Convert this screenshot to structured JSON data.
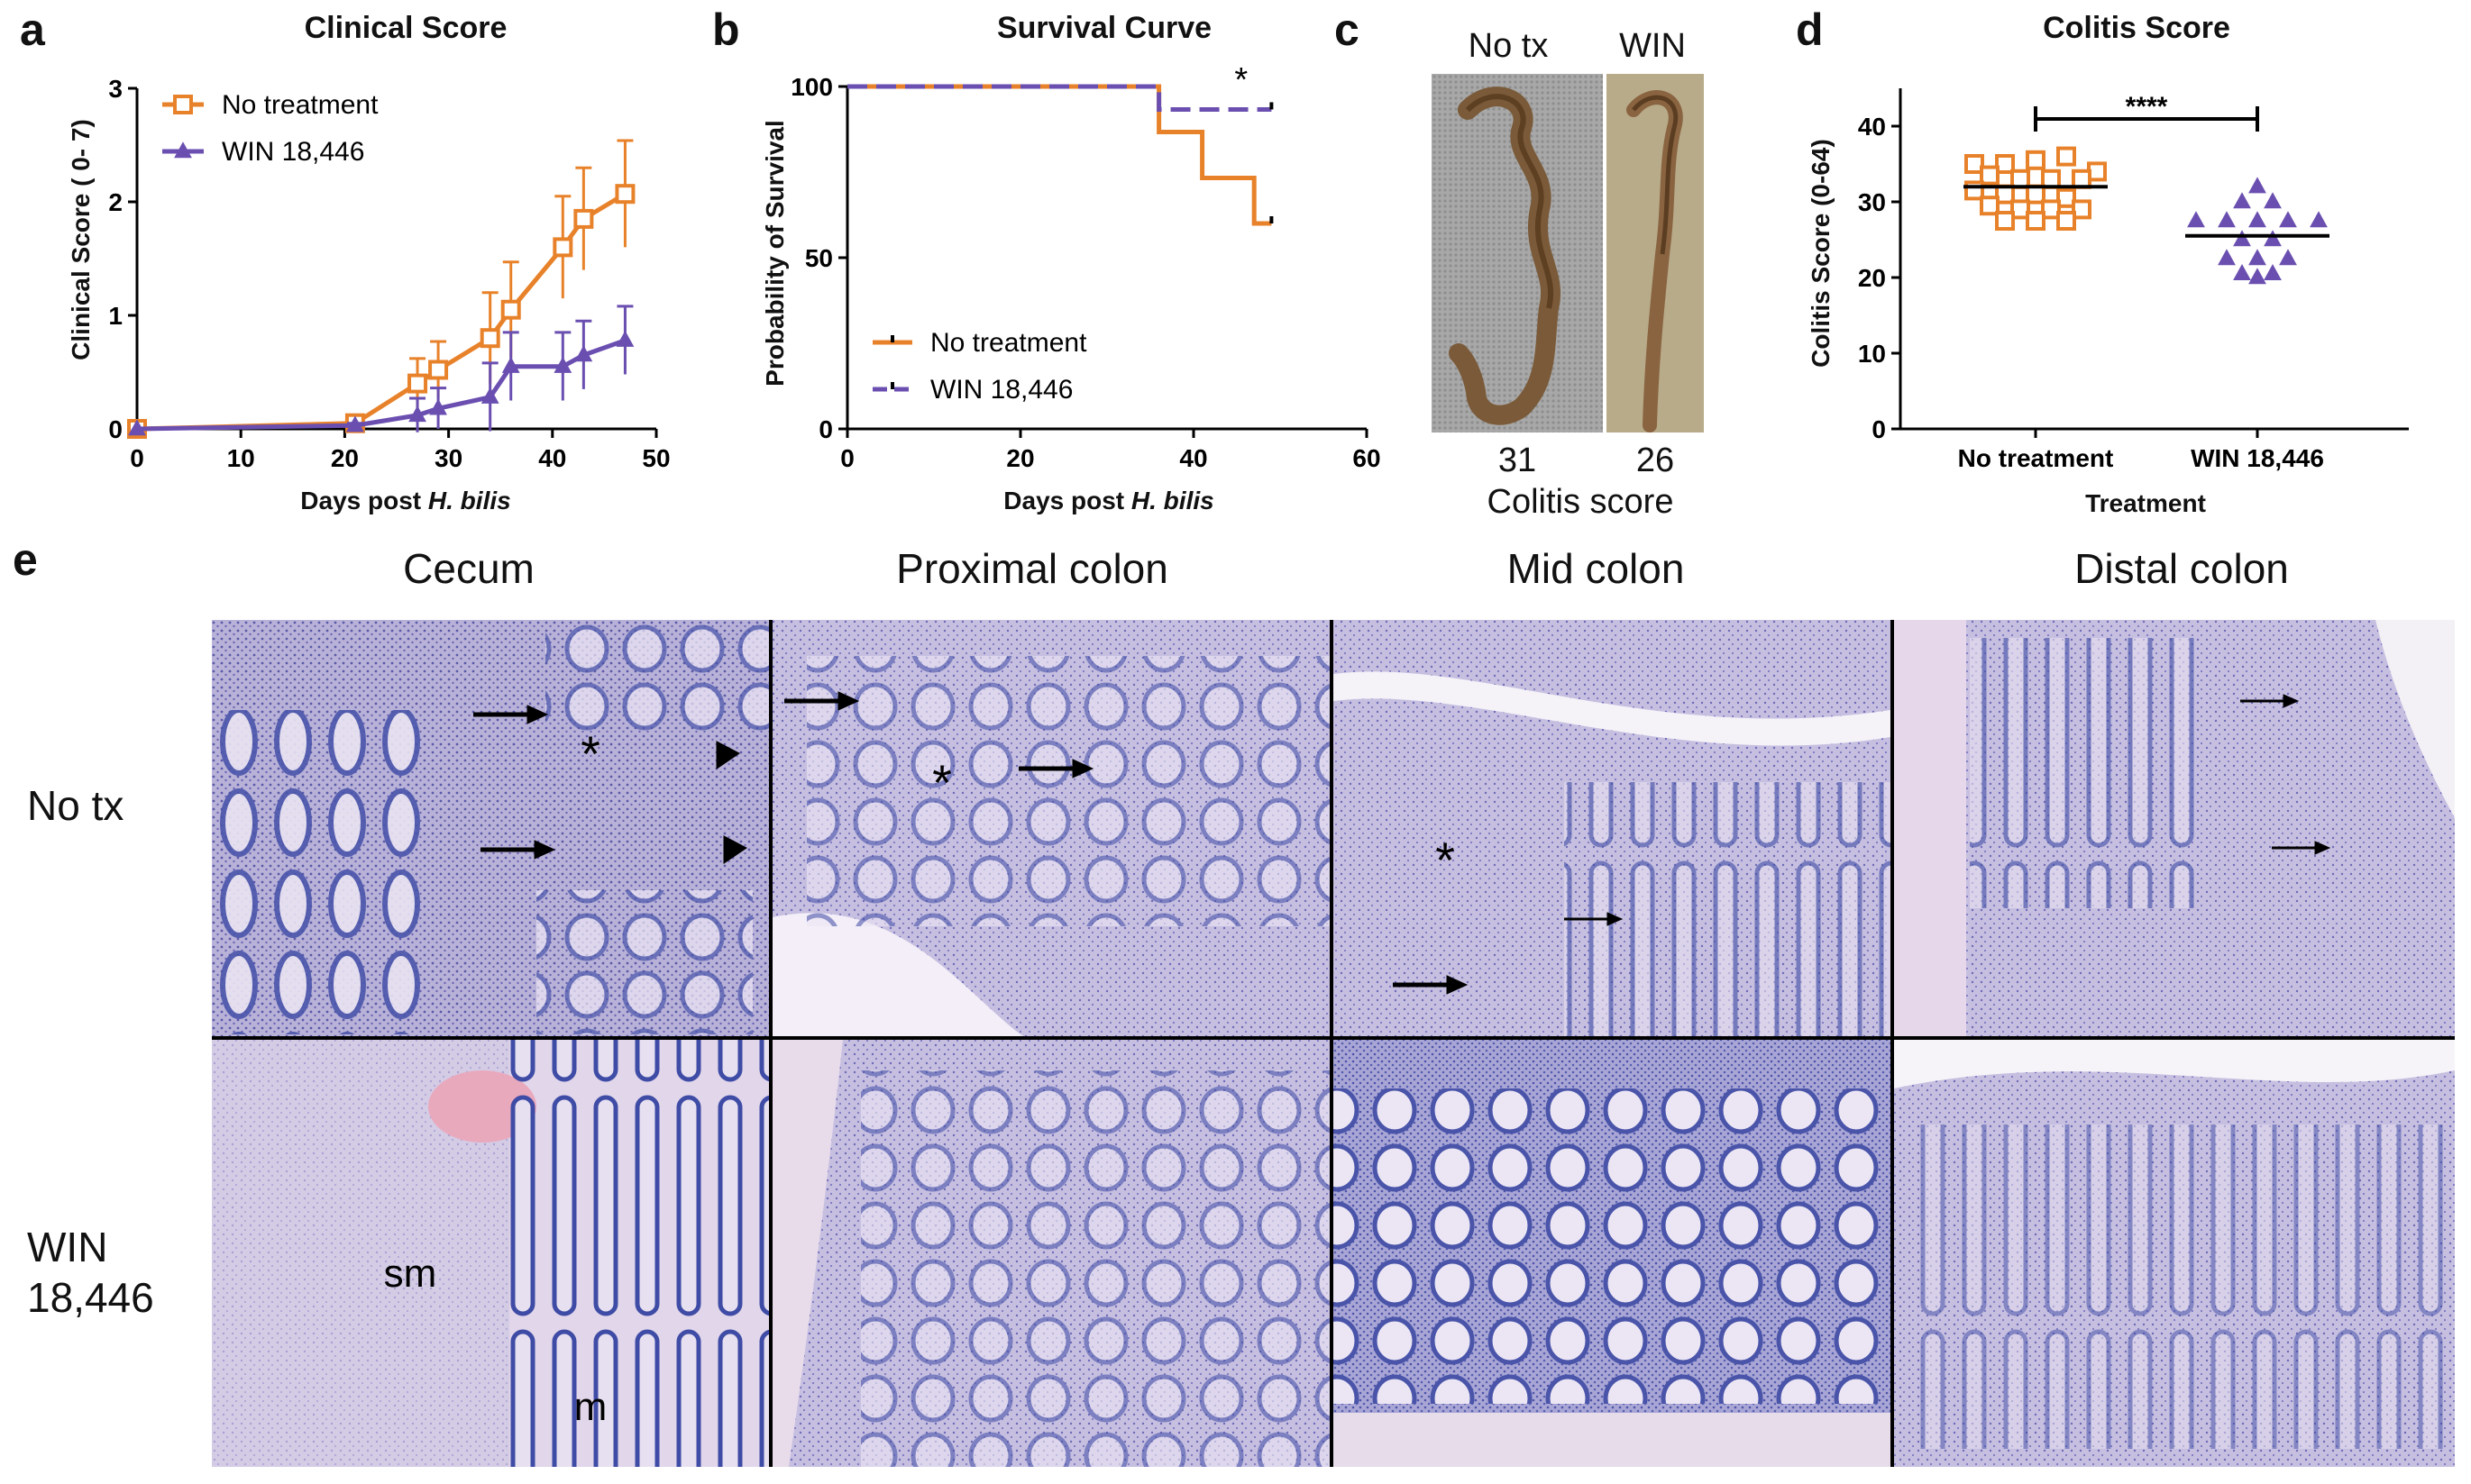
{
  "panels": {
    "a": "a",
    "b": "b",
    "c": "c",
    "d": "d",
    "e": "e"
  },
  "colors": {
    "orange": "#e8822a",
    "purple": "#6a4fb0",
    "axis": "#000000"
  },
  "chart_data": [
    {
      "id": "a",
      "type": "line",
      "title": "Clinical Score",
      "xlabel_prefix": "Days post ",
      "xlabel_italic": "H. bilis",
      "ylabel": "Clinical Score ( 0- 7)",
      "xlim": [
        0,
        50
      ],
      "ylim": [
        0,
        3
      ],
      "xticks": [
        0,
        10,
        20,
        30,
        40,
        50
      ],
      "yticks": [
        0,
        1,
        2,
        3
      ],
      "legend_position": "top-left",
      "series": [
        {
          "name": "No treatment",
          "color": "#e8822a",
          "marker": "square-open",
          "x": [
            0,
            21,
            27,
            29,
            34,
            36,
            41,
            43,
            47
          ],
          "y": [
            0,
            0.05,
            0.4,
            0.52,
            0.8,
            1.05,
            1.6,
            1.85,
            2.07
          ],
          "err": [
            0,
            0.03,
            0.22,
            0.25,
            0.4,
            0.42,
            0.45,
            0.45,
            0.47
          ]
        },
        {
          "name": "WIN 18,446",
          "color": "#6a4fb0",
          "marker": "triangle-filled",
          "x": [
            0,
            21,
            27,
            29,
            34,
            36,
            41,
            43,
            47
          ],
          "y": [
            0,
            0.03,
            0.12,
            0.18,
            0.28,
            0.55,
            0.55,
            0.65,
            0.78
          ],
          "err": [
            0,
            0.02,
            0.15,
            0.18,
            0.3,
            0.3,
            0.3,
            0.3,
            0.3
          ]
        }
      ]
    },
    {
      "id": "b",
      "type": "line",
      "title": "Survival Curve",
      "xlabel_prefix": "Days post ",
      "xlabel_italic": "H. bilis",
      "ylabel": "Probability of Survival",
      "xlim": [
        0,
        60
      ],
      "ylim": [
        0,
        100
      ],
      "xticks": [
        0,
        20,
        40,
        60
      ],
      "yticks": [
        0,
        50,
        100
      ],
      "legend_position": "bottom-left",
      "significance": "*",
      "series": [
        {
          "name": "No treatment",
          "color": "#e8822a",
          "style": "solid",
          "steps": [
            [
              0,
              100
            ],
            [
              36,
              100
            ],
            [
              36,
              86.7
            ],
            [
              41,
              86.7
            ],
            [
              41,
              73.3
            ],
            [
              47,
              73.3
            ],
            [
              47,
              60
            ],
            [
              49,
              60
            ]
          ]
        },
        {
          "name": "WIN 18,446",
          "color": "#6a4fb0",
          "style": "dashed",
          "steps": [
            [
              0,
              100
            ],
            [
              36,
              100
            ],
            [
              36,
              93.3
            ],
            [
              49,
              93.3
            ]
          ]
        }
      ]
    },
    {
      "id": "d",
      "type": "scatter",
      "title": "Colitis Score",
      "xlabel": "Treatment",
      "ylabel": "Colitis Score (0-64)",
      "ylim": [
        0,
        45
      ],
      "yticks": [
        0,
        10,
        20,
        30,
        40
      ],
      "categories": [
        "No treatment",
        "WIN 18,446"
      ],
      "significance": "****",
      "series": [
        {
          "name": "No treatment",
          "color": "#e8822a",
          "marker": "square-open",
          "mean": 32,
          "points": [
            [
              -4,
              35
            ],
            [
              -2,
              35
            ],
            [
              0,
              35.5
            ],
            [
              2,
              36
            ],
            [
              4,
              34
            ],
            [
              -3,
              33.5
            ],
            [
              -1,
              33
            ],
            [
              1,
              33
            ],
            [
              3,
              33
            ],
            [
              -4,
              31.5
            ],
            [
              -2,
              31
            ],
            [
              0,
              31
            ],
            [
              2,
              30.5
            ],
            [
              -3,
              29.5
            ],
            [
              -1,
              29
            ],
            [
              1,
              29
            ],
            [
              3,
              29
            ],
            [
              -2,
              27.5
            ],
            [
              0,
              27.5
            ],
            [
              2,
              27.5
            ]
          ]
        },
        {
          "name": "WIN 18,446",
          "color": "#6a4fb0",
          "marker": "triangle-filled",
          "mean": 25.5,
          "points": [
            [
              0,
              32
            ],
            [
              -1,
              30
            ],
            [
              1,
              30
            ],
            [
              -4,
              27.5
            ],
            [
              -2,
              27.5
            ],
            [
              0,
              27.5
            ],
            [
              2,
              27.5
            ],
            [
              4,
              27.5
            ],
            [
              -1,
              25
            ],
            [
              1,
              25
            ],
            [
              -2,
              22.5
            ],
            [
              0,
              22.5
            ],
            [
              2,
              22.5
            ],
            [
              -1,
              20.5
            ],
            [
              1,
              20.5
            ],
            [
              0,
              20
            ]
          ]
        }
      ]
    }
  ],
  "panel_c": {
    "labels": [
      "No tx",
      "WIN"
    ],
    "scores": [
      "31",
      "26"
    ],
    "caption": "Colitis score"
  },
  "panel_e": {
    "columns": [
      "Cecum",
      "Proximal colon",
      "Mid colon",
      "Distal colon"
    ],
    "rows": [
      "No tx",
      "WIN\n18,446"
    ],
    "annotations": {
      "asterisk": "*",
      "sm": "sm",
      "m": "m"
    }
  }
}
